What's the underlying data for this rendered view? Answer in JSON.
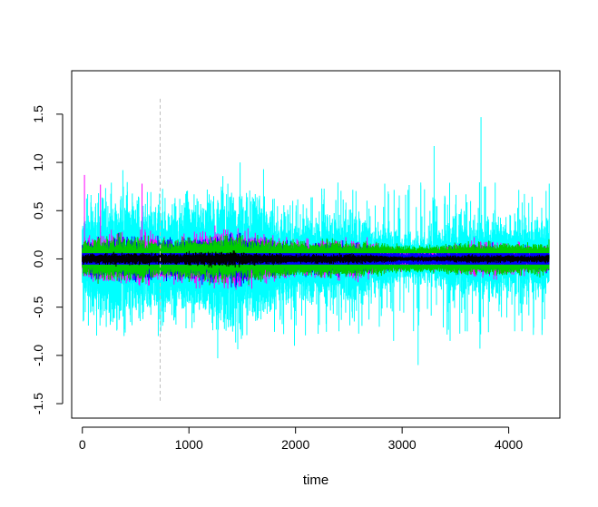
{
  "chart_data": {
    "type": "line",
    "title": "",
    "xlabel": "time",
    "ylabel": "",
    "xlim": [
      -100,
      4480
    ],
    "ylim": [
      -1.65,
      1.95
    ],
    "x_ticks": [
      0,
      1000,
      2000,
      3000,
      4000
    ],
    "x_tick_labels": [
      "0",
      "1000",
      "2000",
      "3000",
      "4000"
    ],
    "y_ticks": [
      -1.5,
      -1.0,
      -0.5,
      0.0,
      0.5,
      1.0,
      1.5
    ],
    "y_tick_labels": [
      "-1.5",
      "-1.0",
      "-0.5",
      "0.0",
      "0.5",
      "1.0",
      "1.5"
    ],
    "grid": false,
    "legend": "none",
    "n_points": 4380,
    "series": [
      {
        "color": "#00FFFF",
        "kind": "noise-envelope",
        "typical_upper": 0.3,
        "typical_lower": -0.3,
        "peaks": [
          {
            "x": 380,
            "y": 0.92
          },
          {
            "x": 1480,
            "y": 1.0
          },
          {
            "x": 1700,
            "y": 0.93
          },
          {
            "x": 3300,
            "y": 1.17
          },
          {
            "x": 3740,
            "y": 1.47
          },
          {
            "x": 4380,
            "y": 0.78
          }
        ],
        "troughs": [
          {
            "x": 1270,
            "y": -1.03
          },
          {
            "x": 1990,
            "y": -0.9
          },
          {
            "x": 2920,
            "y": -0.85
          },
          {
            "x": 3150,
            "y": -1.1
          },
          {
            "x": 3450,
            "y": -0.85
          },
          {
            "x": 3730,
            "y": -0.93
          }
        ]
      },
      {
        "color": "#FF00FF",
        "kind": "noise-envelope",
        "typical_upper": 0.12,
        "typical_lower": -0.12,
        "peaks": [
          {
            "x": 20,
            "y": 0.87
          },
          {
            "x": 170,
            "y": 0.77
          },
          {
            "x": 560,
            "y": 0.78
          }
        ],
        "troughs": []
      },
      {
        "color": "#0000FF",
        "kind": "noise-envelope",
        "typical_upper": 0.1,
        "typical_lower": -0.1,
        "peaks": [],
        "troughs": []
      },
      {
        "color": "#00CD00",
        "kind": "two-bands",
        "upper_band_center": 0.08,
        "lower_band_center": -0.08,
        "band_spread": 0.05,
        "peaks": [],
        "troughs": []
      },
      {
        "color": "#000000",
        "kind": "center-dots",
        "typical_upper": 0.03,
        "typical_lower": -0.03,
        "peaks": [],
        "troughs": []
      }
    ],
    "vertical_line": {
      "x": 730,
      "y_from": -1.47,
      "y_to": 1.68,
      "color": "#BEBEBE",
      "style": "dashed"
    }
  }
}
